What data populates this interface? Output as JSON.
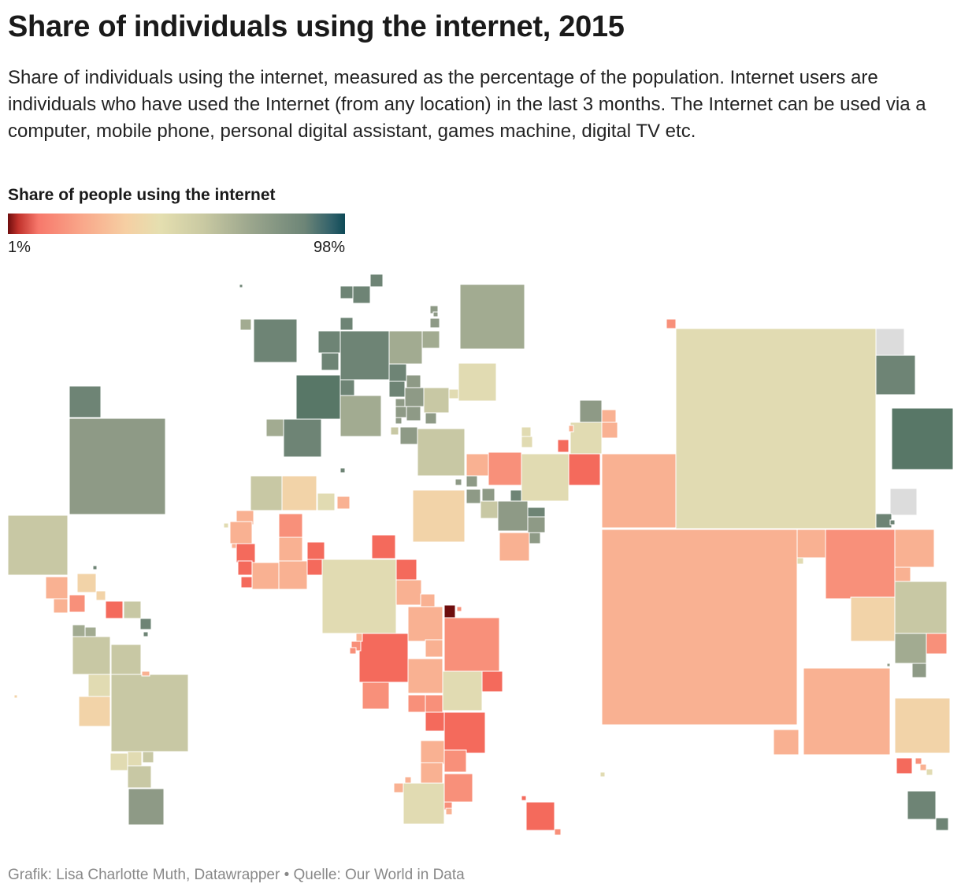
{
  "header": {
    "title": "Share of individuals using the internet, 2015",
    "description": "Share of individuals using the internet, measured as the percentage of the population. Internet users are individuals who have used the Internet (from any location) in the last 3 months. The Internet can be used via a computer, mobile phone, personal digital assistant, games machine, digital TV etc."
  },
  "legend": {
    "title": "Share of people using the internet",
    "min_label": "1%",
    "max_label": "98%",
    "min_value": 1,
    "max_value": 98
  },
  "colors": {
    "no_data": "#dcdcdc",
    "scale": [
      "#6e0d0d",
      "#f7786b",
      "#f9a78a",
      "#f6cfa3",
      "#e5dfb0",
      "#c9c9a2",
      "#9ba68d",
      "#6d8577",
      "#0e4a57"
    ]
  },
  "map_data": {
    "type": "square-cartogram",
    "measure": "Share of people using the internet",
    "unit": "%",
    "year": 2015
  },
  "footer": {
    "credit": "Grafik: Lisa Charlotte Muth, Datawrapper • Quelle: Our World in Data"
  }
}
